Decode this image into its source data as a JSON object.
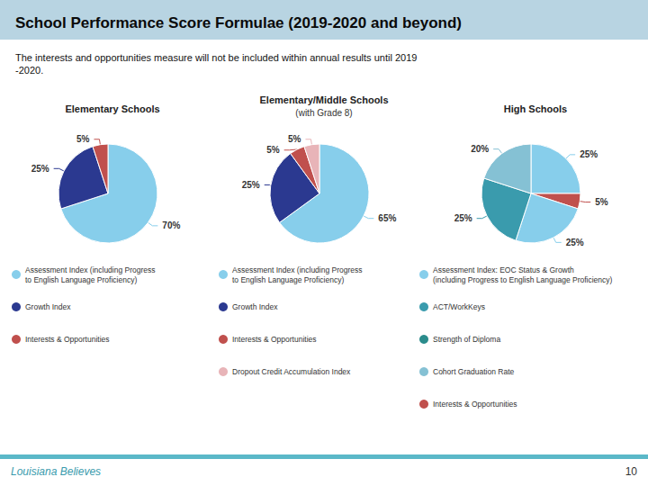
{
  "title": "School Performance Score Formulae (2019-2020 and beyond)",
  "subtitle": "The interests and opportunities measure will not be included within annual results until 2019\n-2020.",
  "annotations": [
    "Louisiana Believes",
    "10"
  ],
  "chart_data": [
    {
      "type": "pie",
      "title": "Elementary Schools",
      "values": [
        70,
        25,
        5
      ],
      "value_labels": [
        "70%",
        "25%",
        "5%"
      ],
      "colors": [
        "#87CEEB",
        "#2B3990",
        "#C0504D"
      ],
      "data_labels": true,
      "annotations": [
        {
          "color": "#87CEEB",
          "text": "Assessment Index (including Progress\nto English Language Proficiency)"
        },
        {
          "color": "#2B3990",
          "text": "Growth Index"
        },
        {
          "color": "#C0504D",
          "text": "Interests & Opportunities"
        }
      ]
    },
    {
      "type": "pie",
      "title": "Elementary/Middle Schools",
      "subtitle": "(with Grade 8)",
      "values": [
        65,
        25,
        5,
        5
      ],
      "value_labels": [
        "65%",
        "25%",
        "5%",
        "5%"
      ],
      "colors": [
        "#87CEEB",
        "#2B3990",
        "#C0504D",
        "#E8B4B8"
      ],
      "data_labels": true,
      "annotations": [
        {
          "color": "#87CEEB",
          "text": "Assessment Index (including Progress\nto English Language Proficiency)"
        },
        {
          "color": "#2B3990",
          "text": "Growth Index"
        },
        {
          "color": "#C0504D",
          "text": "Interests & Opportunities"
        },
        {
          "color": "#E8B4B8",
          "text": "Dropout Credit Accumulation Index"
        }
      ]
    },
    {
      "type": "pie",
      "title": "High Schools",
      "values": [
        25,
        5,
        25,
        25,
        20
      ],
      "value_labels": [
        "25%",
        "5%",
        "25%",
        "25%",
        "20%"
      ],
      "colors": [
        "#87CEEB",
        "#C0504D",
        "#87CEEB",
        "#3A9BAD",
        "#85C1D4"
      ],
      "data_labels": true,
      "annotations": [
        {
          "color": "#87CEEB",
          "text": "Assessment Index: EOC Status & Growth\n(including Progress to English Language Proficiency)"
        },
        {
          "color": "#3A9BAD",
          "text": "ACT/WorkKeys"
        },
        {
          "color": "#2B8C8C",
          "text": "Strength of Diploma"
        },
        {
          "color": "#85C1D4",
          "text": "Cohort Graduation Rate"
        },
        {
          "color": "#C0504D",
          "text": "Interests & Opportunities"
        }
      ]
    }
  ]
}
